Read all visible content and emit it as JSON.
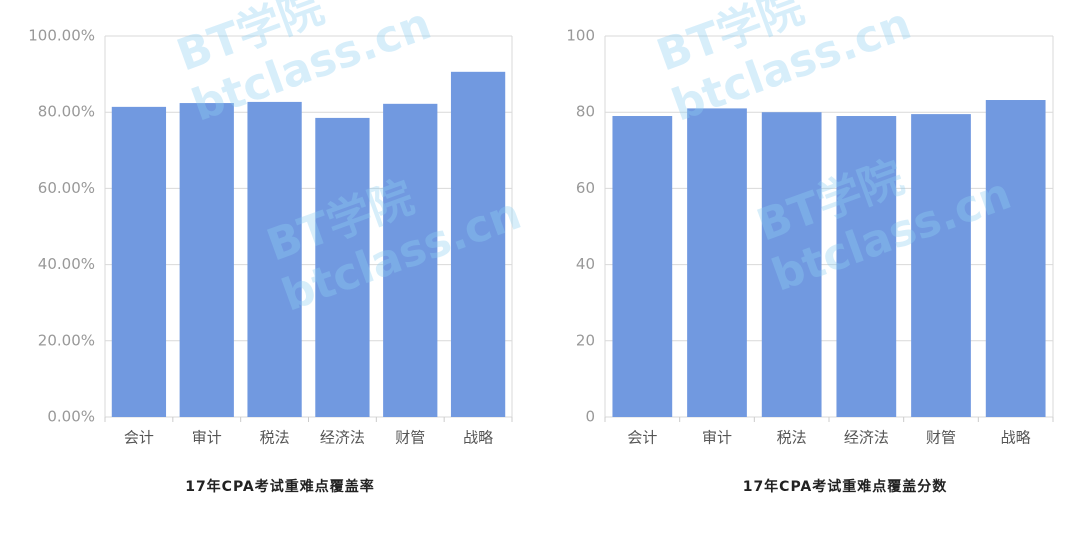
{
  "watermark": [
    "BT学院",
    "btclass.cn"
  ],
  "chart_data": [
    {
      "type": "bar",
      "title": "17年CPA考试重难点覆盖率",
      "categories": [
        "会计",
        "审计",
        "税法",
        "经济法",
        "财管",
        "战略"
      ],
      "values": [
        81.4,
        82.4,
        82.7,
        78.5,
        82.2,
        90.6
      ],
      "color": "#7199e0",
      "ylim": [
        0,
        100
      ],
      "yticks": [
        {
          "value": 0,
          "label": "0.00%"
        },
        {
          "value": 20,
          "label": "20.00%"
        },
        {
          "value": 40,
          "label": "40.00%"
        },
        {
          "value": 60,
          "label": "60.00%"
        },
        {
          "value": 80,
          "label": "80.00%"
        },
        {
          "value": 100,
          "label": "100.00%"
        }
      ],
      "grid": true
    },
    {
      "type": "bar",
      "title": "17年CPA考试重难点覆盖分数",
      "categories": [
        "会计",
        "审计",
        "税法",
        "经济法",
        "财管",
        "战略"
      ],
      "values": [
        79,
        81,
        80,
        79,
        79.5,
        83.2
      ],
      "color": "#7199e0",
      "ylim": [
        0,
        100
      ],
      "yticks": [
        0,
        20,
        40,
        60,
        80,
        100
      ],
      "grid": true
    }
  ]
}
